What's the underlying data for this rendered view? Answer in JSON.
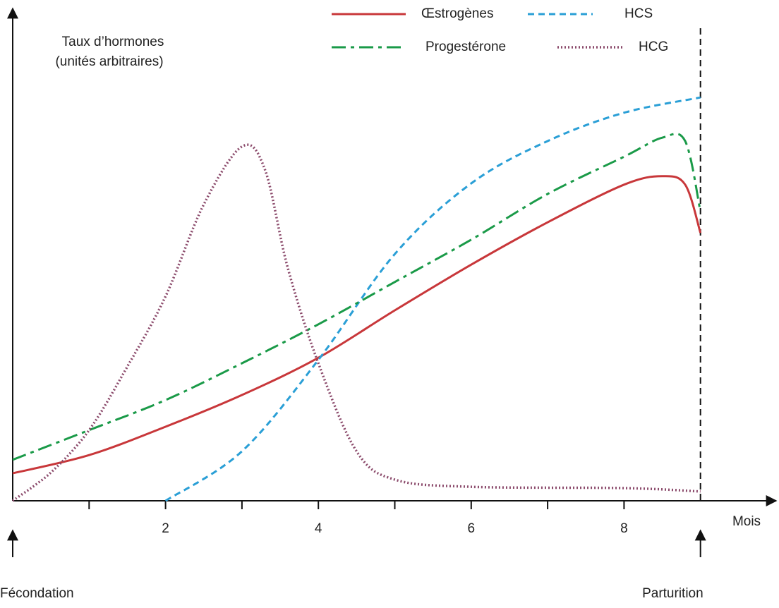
{
  "chart_data": {
    "type": "line",
    "ylabel": [
      "Taux d’hormones",
      "(unités arbitraires)"
    ],
    "xlabel": "Mois",
    "xlim": [
      0,
      10
    ],
    "ylim": [
      0,
      100
    ],
    "xticks": [
      2,
      4,
      6,
      8
    ],
    "minor_xticks": [
      1,
      3,
      5,
      7
    ],
    "legend": "top",
    "series": [
      {
        "name": "Œstrogènes",
        "color": "#c8373a",
        "style": "solid",
        "x": [
          0,
          1,
          2,
          3,
          4,
          5,
          6,
          7,
          8,
          8.5,
          8.8,
          9
        ],
        "values": [
          6.5,
          10.8,
          17.5,
          25,
          33.8,
          45,
          55.8,
          65.8,
          74.7,
          76.7,
          74.7,
          63.3
        ]
      },
      {
        "name": "HCS",
        "color": "#2a9fd6",
        "style": "dash",
        "x": [
          2,
          3,
          4,
          5,
          6,
          7,
          8,
          9
        ],
        "values": [
          0,
          11.7,
          33.3,
          58.3,
          75,
          85,
          91.7,
          95.3
        ]
      },
      {
        "name": "Progestérone",
        "color": "#1a9a48",
        "style": "dash-dot",
        "x": [
          0,
          1,
          2,
          3,
          4,
          5,
          6,
          7,
          8,
          8.5,
          8.8,
          9
        ],
        "values": [
          9.7,
          16.7,
          23.8,
          32.5,
          41.7,
          51.7,
          61.7,
          72.5,
          81.3,
          85.8,
          85,
          68.3
        ]
      },
      {
        "name": "HCG",
        "color": "#8b4a6b",
        "style": "dot",
        "x": [
          0,
          0.5,
          1,
          1.5,
          2,
          2.5,
          3,
          3.3,
          3.6,
          4,
          4.5,
          5,
          6,
          8,
          9
        ],
        "values": [
          0,
          6.7,
          16.7,
          31.7,
          48.3,
          70,
          83.7,
          78.3,
          55,
          32.5,
          11.7,
          5,
          3.3,
          3,
          2.2
        ]
      }
    ],
    "annotations": [
      {
        "text": "Fécondation",
        "x": 0
      },
      {
        "text": "Parturition",
        "x": 9
      }
    ]
  }
}
